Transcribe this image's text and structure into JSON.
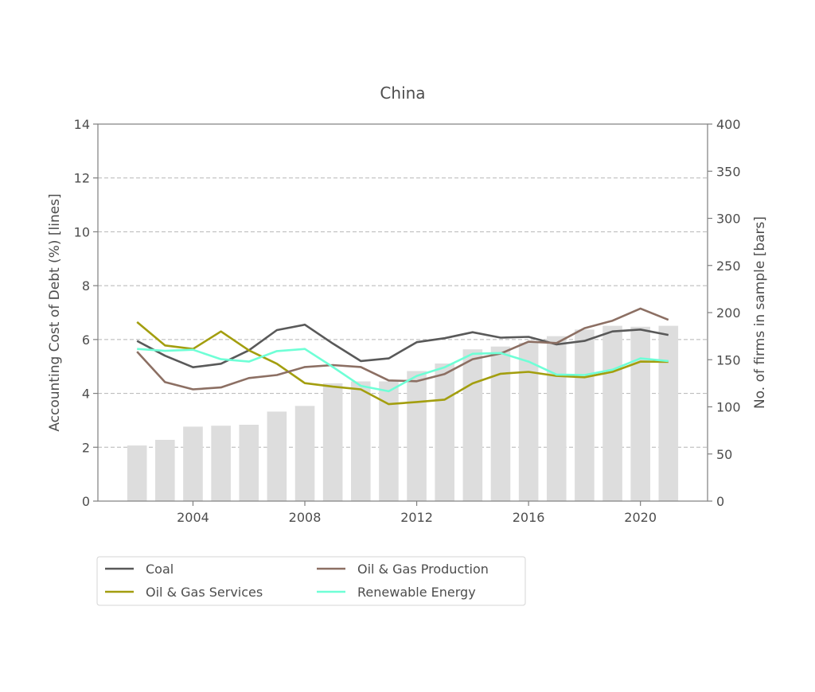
{
  "chart_data": {
    "type": "bar+line",
    "title": "China",
    "ylabel": "Accounting Cost of Debt (%)  [lines]",
    "y2label": "No. of firms in sample [bars]",
    "xlabel": "",
    "ylim": [
      0,
      14
    ],
    "y2lim": [
      0,
      400
    ],
    "yticks": [
      0,
      2,
      4,
      6,
      8,
      10,
      12,
      14
    ],
    "y2ticks": [
      0,
      50,
      100,
      150,
      200,
      250,
      300,
      350,
      400
    ],
    "xticks": [
      2004,
      2008,
      2012,
      2016,
      2020
    ],
    "xlim": [
      2000.6,
      2022.4
    ],
    "grid": "horizontal dashed",
    "legend_position": "below plot",
    "years": [
      2002,
      2003,
      2004,
      2005,
      2006,
      2007,
      2008,
      2009,
      2010,
      2011,
      2012,
      2013,
      2014,
      2015,
      2016,
      2017,
      2018,
      2019,
      2020,
      2021
    ],
    "bars": {
      "values": [
        59,
        65,
        79,
        80,
        81,
        95,
        101,
        125,
        127,
        127,
        138,
        146,
        161,
        164,
        168,
        175,
        182,
        186,
        185,
        186
      ],
      "color": "#dddddd"
    },
    "series": [
      {
        "name": "Coal",
        "color": "#595959",
        "values": [
          5.95,
          5.4,
          4.97,
          5.1,
          5.6,
          6.35,
          6.55,
          5.85,
          5.2,
          5.3,
          5.9,
          6.05,
          6.27,
          6.07,
          6.1,
          5.82,
          5.95,
          6.3,
          6.37,
          6.17
        ]
      },
      {
        "name": "Oil & Gas Services",
        "color": "#a39e0f",
        "values": [
          6.65,
          5.78,
          5.65,
          6.3,
          5.6,
          5.1,
          4.38,
          4.25,
          4.15,
          3.6,
          3.68,
          3.77,
          4.37,
          4.73,
          4.8,
          4.65,
          4.6,
          4.8,
          5.18,
          5.17
        ]
      },
      {
        "name": "Oil & Gas Production",
        "color": "#8c6f63",
        "values": [
          5.55,
          4.42,
          4.15,
          4.22,
          4.57,
          4.68,
          4.98,
          5.05,
          4.98,
          4.48,
          4.45,
          4.72,
          5.27,
          5.48,
          5.92,
          5.87,
          6.42,
          6.7,
          7.15,
          6.73
        ]
      },
      {
        "name": "Renewable Energy",
        "color": "#6fffd6",
        "values": [
          5.65,
          5.58,
          5.62,
          5.27,
          5.18,
          5.57,
          5.65,
          4.98,
          4.28,
          4.08,
          4.65,
          4.97,
          5.47,
          5.5,
          5.18,
          4.7,
          4.68,
          4.88,
          5.3,
          5.2
        ]
      }
    ],
    "legend": [
      "Coal",
      "Oil & Gas Production",
      "Oil & Gas Services",
      "Renewable Energy"
    ]
  }
}
